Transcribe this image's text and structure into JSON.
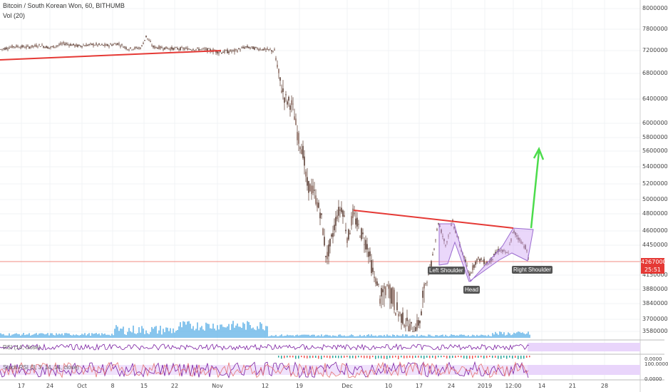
{
  "header": {
    "title": "Bitcoin / South Korean Won, 60, BITHUMB",
    "volume_label": "Vol (20)"
  },
  "last_price": {
    "value": "4267000",
    "countdown": "25:51"
  },
  "pattern_labels": {
    "left_shoulder": "Left Shoulder",
    "head": "Head",
    "right_shoulder": "Right Shoulder"
  },
  "oscillators": {
    "rsi_label": "RSI (14, close)",
    "stoch_label": "Stoch RSI (3, 3, 14, 14, close)",
    "stoch_ticks": [
      "100.0000",
      "0.0000"
    ],
    "rsi_tick": "0.0000"
  },
  "colors": {
    "up": "#26a69a",
    "down": "#ef5350",
    "candle": "#6d4c41",
    "trendline": "#e53935",
    "pattern_fill": "#d1a7f5",
    "target_arrow": "#4cdc4c",
    "volume": "#6ab7e8",
    "oscillator_line": "#7b1fa2"
  },
  "chart_data": {
    "type": "line",
    "title": "Bitcoin / South Korean Won, 60, BITHUMB",
    "x_tick_labels": [
      "17",
      "24",
      "Oct",
      "8",
      "15",
      "22",
      "Nov",
      "12",
      "19",
      "Dec",
      "10",
      "17",
      "24",
      "2019",
      "12:00",
      "14",
      "21",
      "28"
    ],
    "y_tick_labels": [
      "8000000",
      "7800000",
      "7200000",
      "6800000",
      "6400000",
      "6000000",
      "5800000",
      "5600000",
      "5400000",
      "5200000",
      "5000000",
      "4800000",
      "4600000",
      "4450000",
      "4150000",
      "3880000",
      "3840000",
      "3700000",
      "3580000"
    ],
    "series": [
      {
        "values": [
          [
            0,
            7230000
          ],
          [
            20,
            7320000
          ],
          [
            40,
            7300000
          ],
          [
            56,
            7350000
          ],
          [
            70,
            7280000
          ],
          [
            90,
            7400000
          ],
          [
            110,
            7330000
          ],
          [
            130,
            7370000
          ],
          [
            150,
            7340000
          ],
          [
            165,
            7400000
          ],
          [
            180,
            7250000
          ],
          [
            198,
            7280000
          ],
          [
            205,
            7600000
          ],
          [
            215,
            7300000
          ],
          [
            240,
            7260000
          ],
          [
            265,
            7250000
          ],
          [
            290,
            7230000
          ],
          [
            310,
            7180000
          ],
          [
            330,
            7200000
          ],
          [
            345,
            7300000
          ],
          [
            360,
            7260000
          ],
          [
            385,
            7200000
          ],
          [
            392,
            6700000
          ],
          [
            400,
            6400000
          ],
          [
            410,
            6300000
          ],
          [
            418,
            5800000
          ],
          [
            425,
            5600000
          ],
          [
            430,
            5200000
          ],
          [
            440,
            5100000
          ],
          [
            450,
            4800000
          ],
          [
            458,
            4300000
          ],
          [
            465,
            4500000
          ],
          [
            473,
            4800000
          ],
          [
            480,
            4900000
          ],
          [
            488,
            4500000
          ],
          [
            495,
            4800000
          ],
          [
            505,
            4600000
          ],
          [
            515,
            4450000
          ],
          [
            525,
            4100000
          ],
          [
            535,
            3840000
          ],
          [
            545,
            3950000
          ],
          [
            555,
            3800000
          ],
          [
            565,
            3700000
          ],
          [
            575,
            3620000
          ],
          [
            582,
            3600000
          ],
          [
            590,
            3700000
          ],
          [
            598,
            4050000
          ],
          [
            605,
            4250000
          ],
          [
            615,
            4700000
          ],
          [
            625,
            4450000
          ],
          [
            635,
            4700000
          ],
          [
            645,
            4450000
          ],
          [
            658,
            4150000
          ],
          [
            670,
            4300000
          ],
          [
            685,
            4250000
          ],
          [
            700,
            4400000
          ],
          [
            712,
            4350000
          ],
          [
            720,
            4600000
          ],
          [
            730,
            4500000
          ],
          [
            738,
            4420000
          ],
          [
            742,
            4267000
          ]
        ]
      }
    ],
    "annotations": [
      "Left Shoulder",
      "Head",
      "Right Shoulder"
    ],
    "last_price": 4267000,
    "grid": true
  }
}
